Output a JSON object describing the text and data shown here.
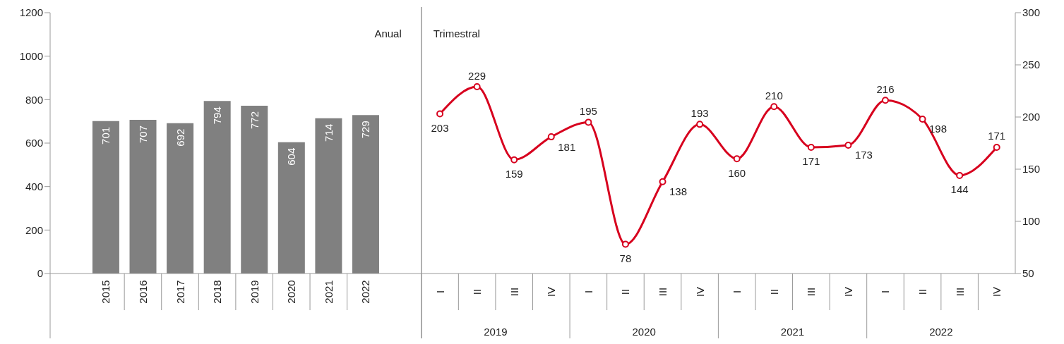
{
  "chart_data": {
    "type": "bar",
    "categories": [
      null,
      "2015",
      "2016",
      "2017",
      "2018",
      "2019",
      "2020",
      "2021",
      "2022",
      null,
      "I",
      "II",
      "III",
      "IV",
      "I",
      "II",
      "III",
      "IV",
      "I",
      "II",
      "III",
      "IV",
      "I",
      "II",
      "III",
      "IV"
    ],
    "series": [
      {
        "color": "#808080",
        "values": [
          null,
          701,
          707,
          692,
          794,
          772,
          604,
          714,
          729,
          null,
          null,
          null,
          null,
          null,
          null,
          null,
          null,
          null,
          null,
          null,
          null,
          null,
          null,
          null,
          null,
          null
        ]
      },
      {
        "type": "line",
        "axis": "y2",
        "color": "#d7001e",
        "values": [
          null,
          null,
          null,
          null,
          null,
          null,
          null,
          null,
          null,
          null,
          203,
          229,
          159,
          181,
          195,
          78,
          138,
          193,
          160,
          210,
          171,
          173,
          216,
          198,
          144,
          171
        ]
      }
    ],
    "ylim": [
      0,
      1200
    ],
    "yticks": [
      0,
      200,
      400,
      600,
      800,
      1000,
      1200
    ],
    "y2lim": [
      50,
      300
    ],
    "y2ticks": [
      50,
      100,
      150,
      200,
      250,
      300
    ],
    "data_labels": true,
    "marker": "circle",
    "annotations": [
      "Anual",
      "Trimestral",
      "2019",
      "2020",
      "2021",
      "2022"
    ]
  }
}
